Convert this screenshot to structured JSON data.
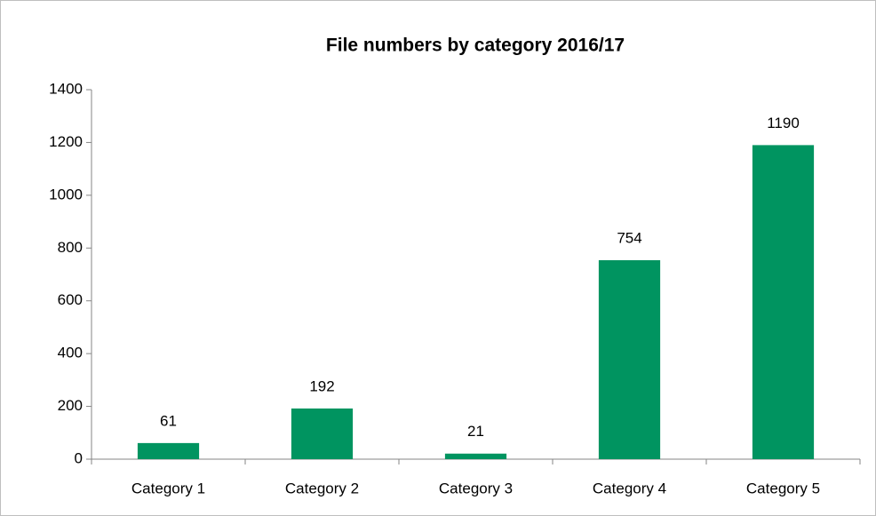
{
  "chart_data": {
    "type": "bar",
    "title": "File numbers by category 2016/17",
    "categories": [
      "Category 1",
      "Category 2",
      "Category 3",
      "Category 4",
      "Category 5"
    ],
    "values": [
      61,
      192,
      21,
      754,
      1190
    ],
    "color": "#009460",
    "ylim": [
      0,
      1400
    ],
    "yticks": [
      0,
      200,
      400,
      600,
      800,
      1000,
      1200,
      1400
    ],
    "grid": false
  }
}
